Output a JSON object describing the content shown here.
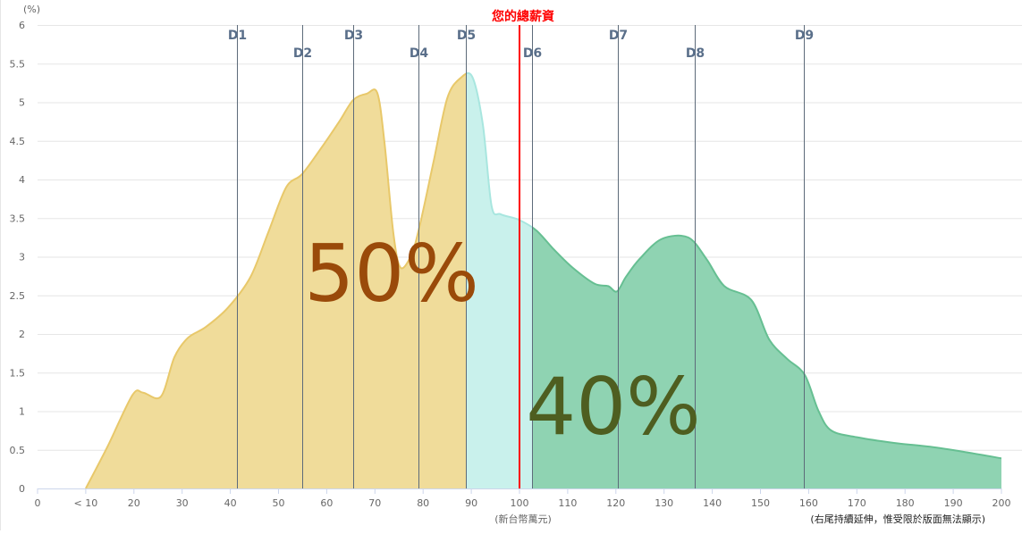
{
  "chart_data": {
    "type": "area",
    "ylabel": "(%)",
    "xlabel": "(新台幣萬元)",
    "note": "(右尾持續延伸，惟受限於版面無法顯示)",
    "xlim": [
      0,
      200
    ],
    "ylim": [
      0,
      6
    ],
    "x_ticks": [
      {
        "value": 0,
        "label": "0"
      },
      {
        "value": 10,
        "label": "< 10"
      },
      {
        "value": 20,
        "label": "20"
      },
      {
        "value": 30,
        "label": "30"
      },
      {
        "value": 40,
        "label": "40"
      },
      {
        "value": 50,
        "label": "50"
      },
      {
        "value": 60,
        "label": "60"
      },
      {
        "value": 70,
        "label": "70"
      },
      {
        "value": 80,
        "label": "80"
      },
      {
        "value": 90,
        "label": "90"
      },
      {
        "value": 100,
        "label": "100"
      },
      {
        "value": 110,
        "label": "110"
      },
      {
        "value": 120,
        "label": "120"
      },
      {
        "value": 130,
        "label": "130"
      },
      {
        "value": 140,
        "label": "140"
      },
      {
        "value": 150,
        "label": "150"
      },
      {
        "value": 160,
        "label": "160"
      },
      {
        "value": 170,
        "label": "170"
      },
      {
        "value": 180,
        "label": "180"
      },
      {
        "value": 190,
        "label": "190"
      },
      {
        "value": 200,
        "label": "200"
      }
    ],
    "y_ticks": [
      "0",
      "0.5",
      "1",
      "1.5",
      "2",
      "2.5",
      "3",
      "3.5",
      "4",
      "4.5",
      "5",
      "5.5",
      "6"
    ],
    "grid": true,
    "x": [
      10,
      14.5,
      19.7,
      21.9,
      25.6,
      28.4,
      31.2,
      34.9,
      39.5,
      44.2,
      47.9,
      51.6,
      54.9,
      59,
      62.7,
      65.5,
      68.3,
      70.5,
      72,
      73.8,
      75.3,
      77.6,
      79.4,
      82.2,
      85,
      87.7,
      90.2,
      92.4,
      94.2,
      96.1,
      99.8,
      103.5,
      107.2,
      111,
      115.6,
      118.4,
      120.2,
      122.1,
      124.9,
      129.5,
      135,
      138.8,
      142.5,
      148.1,
      151.8,
      155.5,
      159.2,
      162,
      164.7,
      170.3,
      177.7,
      185.2,
      192.6,
      200
    ],
    "y": [
      0,
      0.54,
      1.21,
      1.24,
      1.19,
      1.7,
      1.95,
      2.09,
      2.34,
      2.74,
      3.32,
      3.9,
      4.07,
      4.42,
      4.76,
      5.03,
      5.11,
      5.12,
      4.47,
      3.32,
      2.86,
      3.03,
      3.43,
      4.24,
      5.05,
      5.31,
      5.33,
      4.71,
      3.66,
      3.55,
      3.48,
      3.34,
      3.09,
      2.86,
      2.65,
      2.62,
      2.55,
      2.74,
      2.97,
      3.23,
      3.25,
      2.97,
      2.62,
      2.44,
      1.93,
      1.68,
      1.47,
      1.01,
      0.75,
      0.66,
      0.59,
      0.54,
      0.47,
      0.39
    ],
    "deciles": [
      {
        "label": "D1",
        "value": 41.4
      },
      {
        "label": "D2",
        "value": 54.9
      },
      {
        "label": "D3",
        "value": 65.5
      },
      {
        "label": "D4",
        "value": 79.0
      },
      {
        "label": "D5",
        "value": 88.9
      },
      {
        "label": "D6",
        "value": 102.6
      },
      {
        "label": "D7",
        "value": 120.4
      },
      {
        "label": "D8",
        "value": 136.4
      },
      {
        "label": "D9",
        "value": 159.0
      }
    ],
    "marker": {
      "label": "您的總薪資",
      "value": 100,
      "color": "#ff0000"
    },
    "regions": [
      {
        "from": 0,
        "to": 88.9,
        "fill": "#f0dc9a",
        "stroke": "#e8c86a",
        "label": "50%",
        "label_color": "#9a4a0a"
      },
      {
        "from": 88.9,
        "to": 102.6,
        "fill": "#c9f1ec",
        "stroke": "#a8e6df"
      },
      {
        "from": 102.6,
        "to": 200,
        "fill": "#8fd3b2",
        "stroke": "#66bf92",
        "label": "40%",
        "label_color": "#4e5e20"
      }
    ]
  }
}
